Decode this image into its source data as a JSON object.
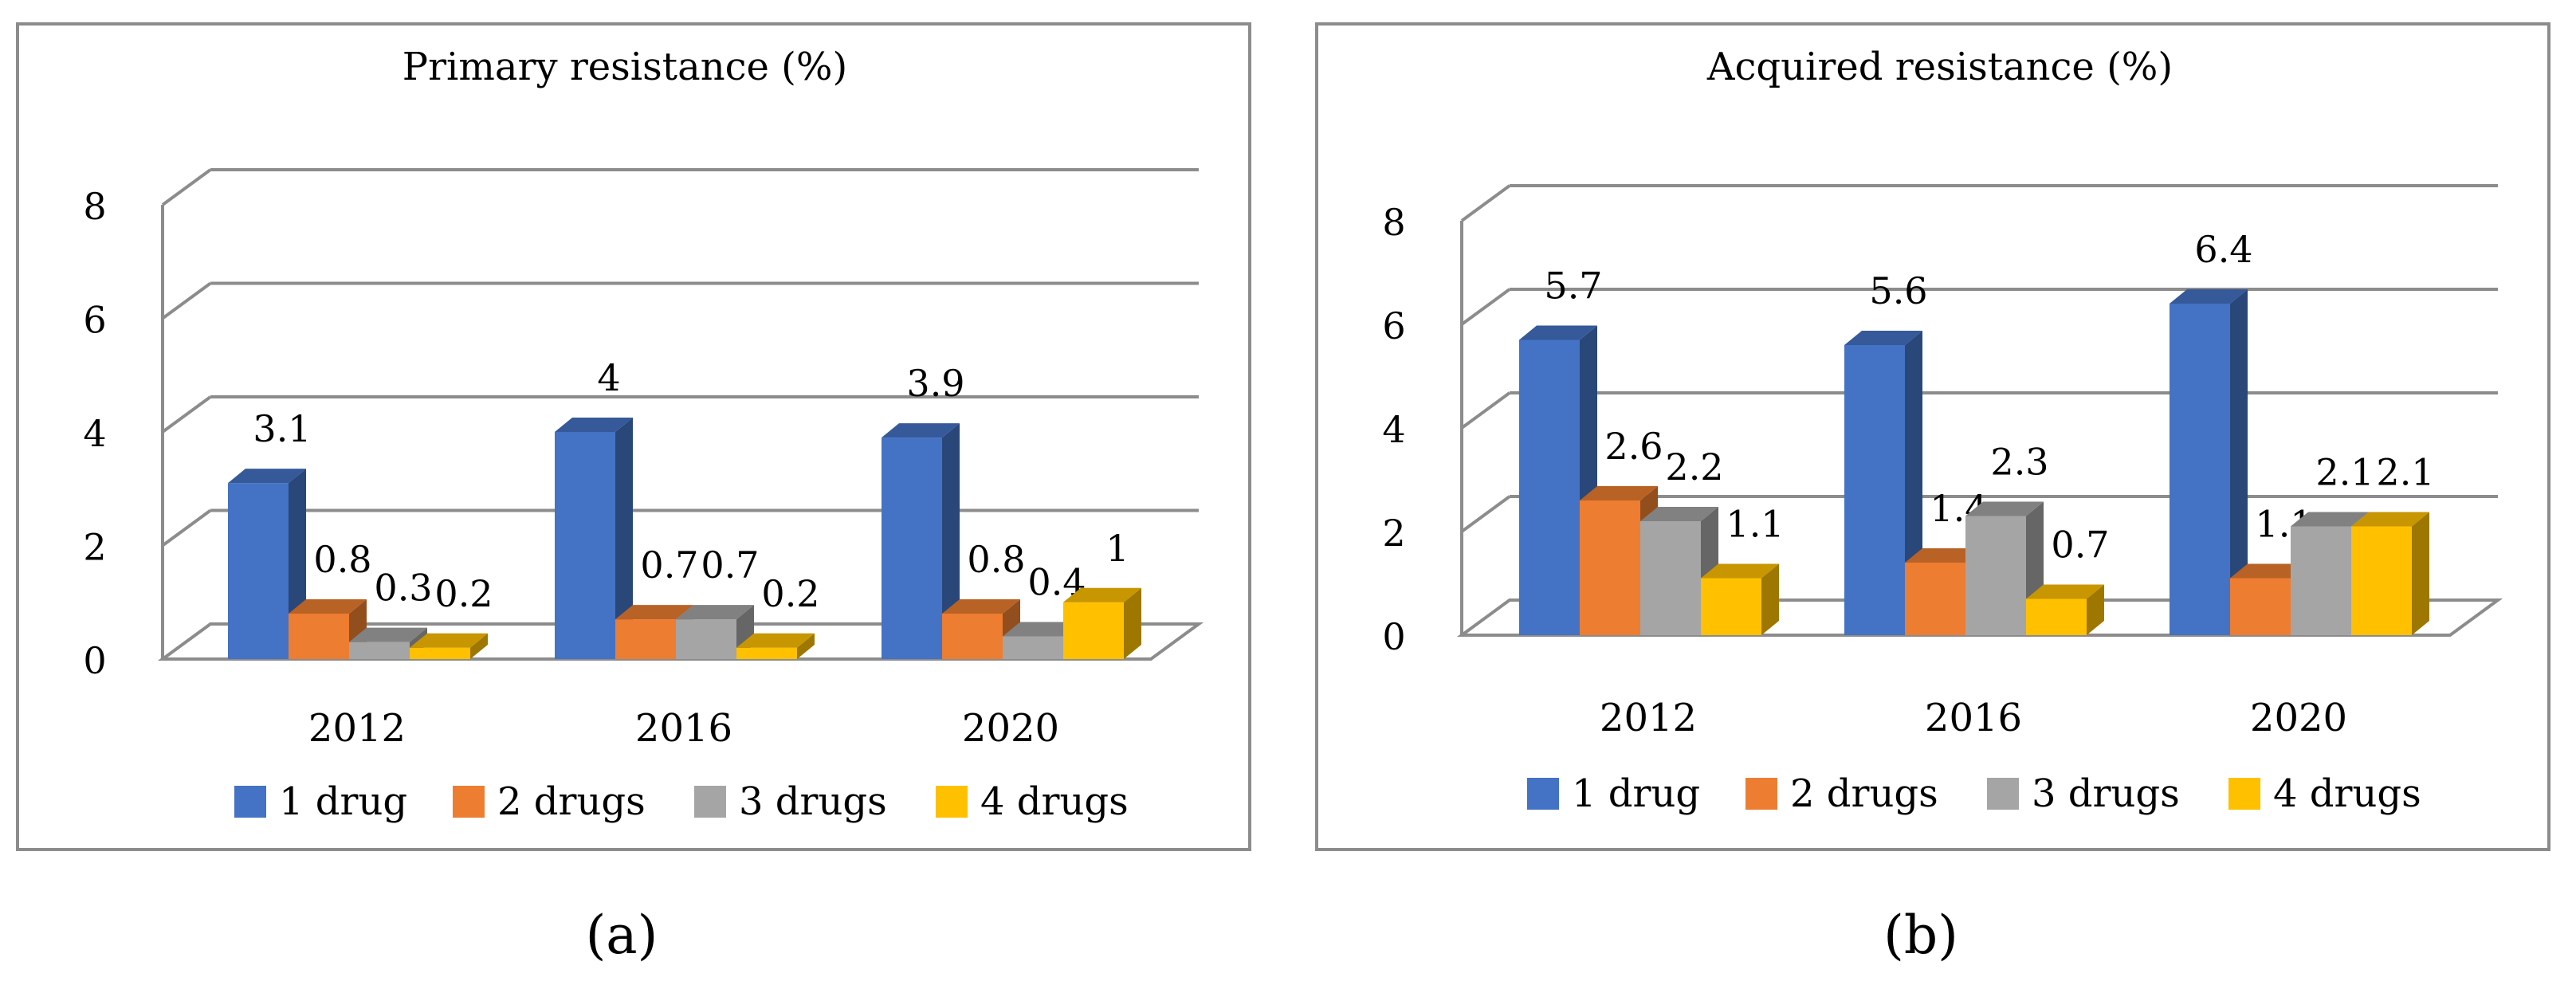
{
  "chart_data": [
    {
      "type": "bar",
      "title": "Primary resistance (%)",
      "categories": [
        "2012",
        "2016",
        "2020"
      ],
      "series": [
        {
          "name": "1 drug",
          "values": [
            3.1,
            4,
            3.9
          ]
        },
        {
          "name": "2 drugs",
          "values": [
            0.8,
            0.7,
            0.8
          ]
        },
        {
          "name": "3 drugs",
          "values": [
            0.3,
            0.7,
            0.4
          ]
        },
        {
          "name": "4 drugs",
          "values": [
            0.2,
            0.2,
            1
          ]
        }
      ],
      "data_labels": [
        [
          "3.1",
          "4",
          "3.9"
        ],
        [
          "0.8",
          "0.7",
          "0.8"
        ],
        [
          "0.3",
          "0.7",
          "0.4"
        ],
        [
          "0.2",
          "0.2",
          "1"
        ]
      ],
      "yticks": [
        "0",
        "2",
        "4",
        "6",
        "8"
      ],
      "ylim": [
        0,
        8
      ],
      "grid": true,
      "legend": "bottom",
      "style": "3d-clustered-column"
    },
    {
      "type": "bar",
      "title": "Acquired resistance (%)",
      "categories": [
        "2012",
        "2016",
        "2020"
      ],
      "series": [
        {
          "name": "1 drug",
          "values": [
            5.7,
            5.6,
            6.4
          ]
        },
        {
          "name": "2 drugs",
          "values": [
            2.6,
            1.4,
            1.1
          ]
        },
        {
          "name": "3 drugs",
          "values": [
            2.2,
            2.3,
            2.1
          ]
        },
        {
          "name": "4 drugs",
          "values": [
            1.1,
            0.7,
            2.1
          ]
        }
      ],
      "data_labels": [
        [
          "5.7",
          "5.6",
          "6.4"
        ],
        [
          "2.6",
          "1.4",
          "1.1"
        ],
        [
          "2.2",
          "2.3",
          "2.1"
        ],
        [
          "1.1",
          "0.7",
          "2.1"
        ]
      ],
      "yticks": [
        "0",
        "2",
        "4",
        "6",
        "8"
      ],
      "ylim": [
        0,
        8
      ],
      "grid": true,
      "legend": "bottom",
      "style": "3d-clustered-column"
    }
  ],
  "series_colors": [
    "#4472C4",
    "#ED7D31",
    "#A5A5A5",
    "#FFC000"
  ],
  "panel_labels": [
    "(a)",
    "(b)"
  ]
}
